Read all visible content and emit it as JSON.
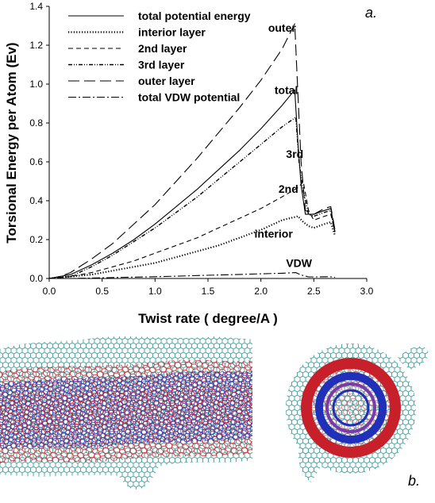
{
  "chart_data": {
    "type": "line",
    "panel_label": "a.",
    "xlabel": "Twist rate ( degree/A )",
    "ylabel": "Torsional Energy per Atom (Ev)",
    "xlim": [
      0,
      3.0
    ],
    "ylim": [
      0,
      1.4
    ],
    "xticks": [
      "0.0",
      "0.5",
      "1.0",
      "1.5",
      "2.0",
      "2.5",
      "3.0"
    ],
    "yticks": [
      "0.0",
      "0.2",
      "0.4",
      "0.6",
      "0.8",
      "1.0",
      "1.2",
      "1.4"
    ],
    "legend_position": "top-left",
    "series": [
      {
        "name": "total potential energy",
        "style": "solid",
        "x": [
          0,
          0.1,
          0.2,
          0.4,
          0.6,
          0.8,
          1.0,
          1.2,
          1.4,
          1.6,
          1.8,
          2.0,
          2.2,
          2.32,
          2.35,
          2.38,
          2.42,
          2.5,
          2.6,
          2.66,
          2.7
        ],
        "y": [
          0,
          0.01,
          0.02,
          0.07,
          0.13,
          0.2,
          0.28,
          0.37,
          0.46,
          0.56,
          0.66,
          0.77,
          0.89,
          0.97,
          0.7,
          0.48,
          0.33,
          0.33,
          0.35,
          0.36,
          0.24
        ]
      },
      {
        "name": "interior layer",
        "style": "dotted",
        "x": [
          0,
          0.2,
          0.4,
          0.6,
          0.8,
          1.0,
          1.2,
          1.4,
          1.6,
          1.8,
          2.0,
          2.2,
          2.35,
          2.4,
          2.45,
          2.5,
          2.6,
          2.66,
          2.7
        ],
        "y": [
          0,
          0.01,
          0.02,
          0.04,
          0.06,
          0.08,
          0.11,
          0.14,
          0.17,
          0.21,
          0.25,
          0.3,
          0.32,
          0.29,
          0.27,
          0.26,
          0.28,
          0.29,
          0.22
        ]
      },
      {
        "name": "2nd layer",
        "style": "short-dash",
        "x": [
          0,
          0.2,
          0.4,
          0.6,
          0.8,
          1.0,
          1.2,
          1.4,
          1.6,
          1.8,
          2.0,
          2.2,
          2.36,
          2.4,
          2.45,
          2.5,
          2.6,
          2.66,
          2.7
        ],
        "y": [
          0,
          0.01,
          0.03,
          0.06,
          0.09,
          0.13,
          0.17,
          0.21,
          0.26,
          0.31,
          0.36,
          0.42,
          0.47,
          0.5,
          0.35,
          0.3,
          0.32,
          0.33,
          0.24
        ]
      },
      {
        "name": "3rd layer",
        "style": "dash-dot-dot",
        "x": [
          0,
          0.2,
          0.4,
          0.6,
          0.8,
          1.0,
          1.2,
          1.4,
          1.6,
          1.8,
          2.0,
          2.2,
          2.33,
          2.36,
          2.4,
          2.45,
          2.5,
          2.6,
          2.66,
          2.7
        ],
        "y": [
          0,
          0.01,
          0.06,
          0.12,
          0.19,
          0.26,
          0.34,
          0.42,
          0.51,
          0.6,
          0.69,
          0.78,
          0.83,
          0.6,
          0.45,
          0.33,
          0.32,
          0.34,
          0.35,
          0.23
        ]
      },
      {
        "name": "outer layer",
        "style": "long-dash",
        "x": [
          0,
          0.1,
          0.2,
          0.4,
          0.6,
          0.8,
          1.0,
          1.2,
          1.4,
          1.6,
          1.8,
          2.0,
          2.2,
          2.32,
          2.35,
          2.38,
          2.42,
          2.5,
          2.6,
          2.66,
          2.7
        ],
        "y": [
          0,
          0.01,
          0.03,
          0.1,
          0.18,
          0.28,
          0.38,
          0.5,
          0.62,
          0.75,
          0.88,
          1.02,
          1.18,
          1.31,
          0.95,
          0.6,
          0.35,
          0.33,
          0.36,
          0.37,
          0.25
        ]
      },
      {
        "name": "total VDW potential",
        "style": "dash-dot",
        "x": [
          0,
          0.2,
          0.4,
          0.6,
          0.8,
          1.0,
          1.2,
          1.4,
          1.6,
          1.8,
          2.0,
          2.2,
          2.33,
          2.38,
          2.45,
          2.55,
          2.65,
          2.7
        ],
        "y": [
          0,
          0.0,
          0.002,
          0.005,
          0.007,
          0.009,
          0.012,
          0.015,
          0.018,
          0.021,
          0.024,
          0.027,
          0.03,
          0.018,
          0.008,
          0.008,
          0.009,
          0.006
        ]
      }
    ],
    "annotations": [
      {
        "text": "outer",
        "x": 2.2,
        "y": 1.27
      },
      {
        "text": "total",
        "x": 2.24,
        "y": 0.95
      },
      {
        "text": "3rd",
        "x": 2.32,
        "y": 0.62
      },
      {
        "text": "2nd",
        "x": 2.26,
        "y": 0.44
      },
      {
        "text": "interior",
        "x": 2.12,
        "y": 0.21
      },
      {
        "text": "VDW",
        "x": 2.36,
        "y": 0.06
      }
    ]
  },
  "figure_b": {
    "panel_label": "b.",
    "colors": {
      "outer": "#3d9c9c",
      "red": "#c8202a",
      "blue": "#2030b8",
      "purple": "#7a3aa8"
    }
  }
}
